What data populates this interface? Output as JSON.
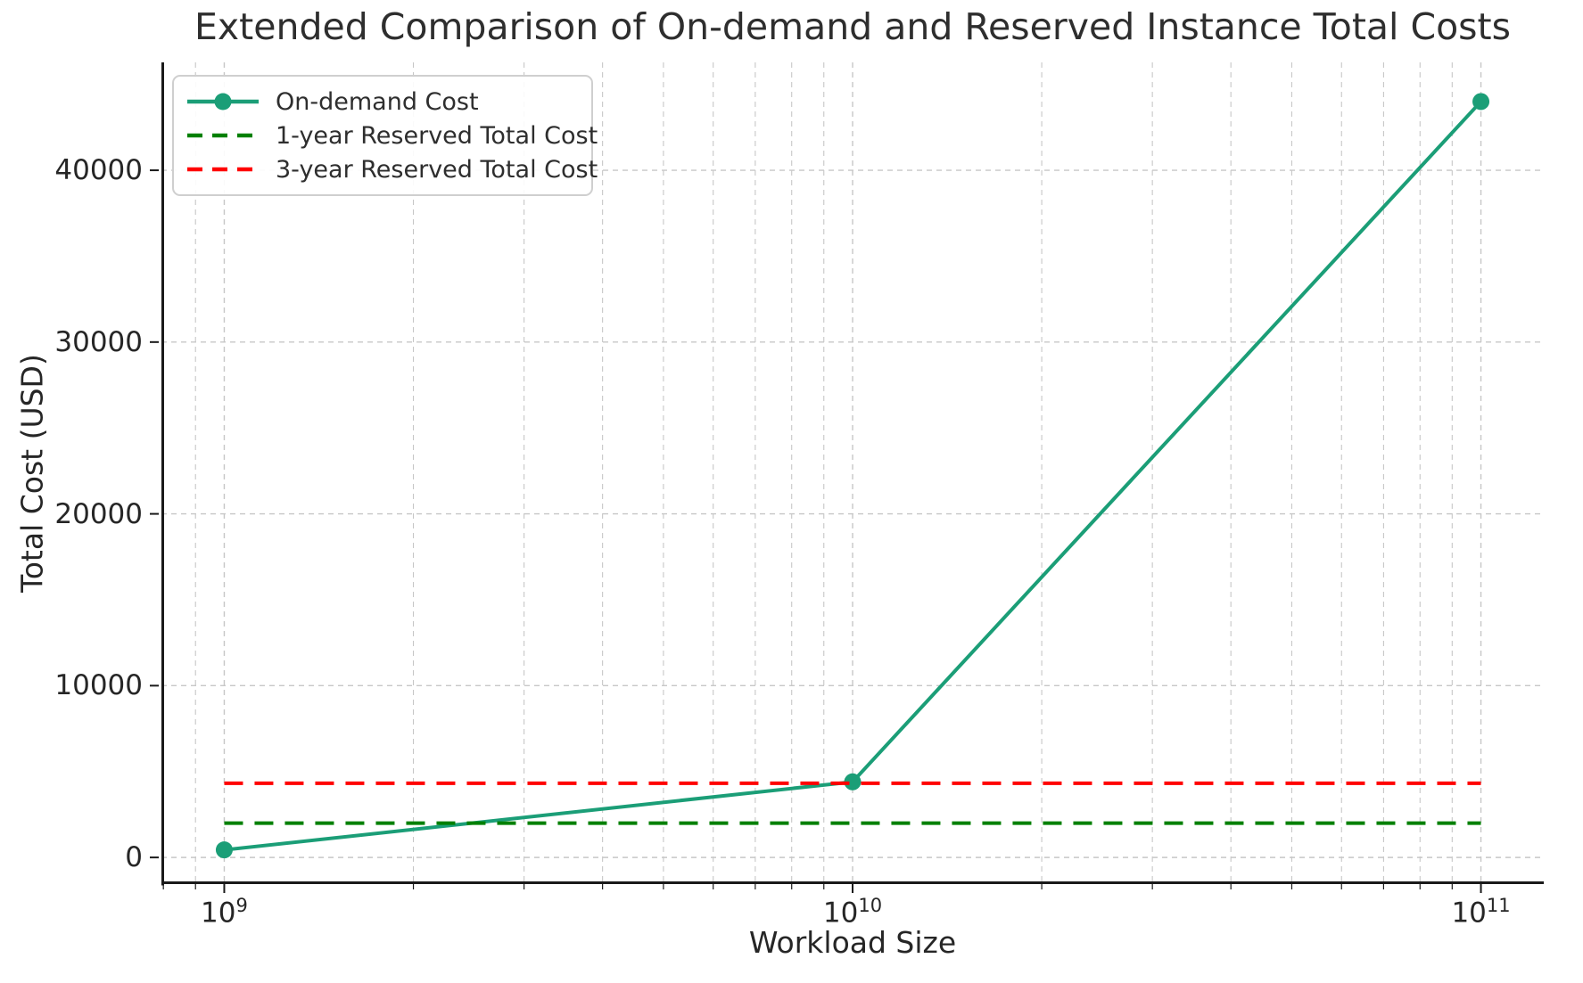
{
  "title": "Extended Comparison of On-demand and Reserved Instance Total Costs",
  "chart_data": {
    "type": "line",
    "title": "Extended Comparison of On-demand and Reserved Instance Total Costs",
    "xlabel": "Workload Size",
    "ylabel": "Total Cost (USD)",
    "xscale": "log",
    "x": [
      1000000000,
      10000000000,
      100000000000
    ],
    "series": [
      {
        "name": "On-demand Cost",
        "values": [
          440,
          4400,
          44000
        ],
        "color": "#1b9e77",
        "line_style": "solid",
        "marker": "circle",
        "line_width": 4
      },
      {
        "name": "1-year Reserved Total Cost",
        "values": [
          2000,
          2000,
          2000
        ],
        "color": "#008000",
        "line_style": "dashed",
        "marker": "none",
        "line_width": 4
      },
      {
        "name": "3-year Reserved Total Cost",
        "values": [
          4320,
          4320,
          4320
        ],
        "color": "#ff0000",
        "line_style": "dashed",
        "marker": "none",
        "line_width": 4
      }
    ],
    "xticks": [
      {
        "base": "10",
        "exp": "9"
      },
      {
        "base": "10",
        "exp": "10"
      },
      {
        "base": "10",
        "exp": "11"
      }
    ],
    "xtick_values": [
      1000000000,
      10000000000,
      100000000000
    ],
    "yticks": [
      0,
      10000,
      20000,
      30000,
      40000
    ],
    "xlim_log10": [
      8.9,
      11.1
    ],
    "ylim": [
      -1550,
      46280
    ],
    "grid": "major+minor dashed",
    "grid_color": "#c7c7c7",
    "axis_color": "#1a1a1a",
    "legend_position": "upper left"
  }
}
